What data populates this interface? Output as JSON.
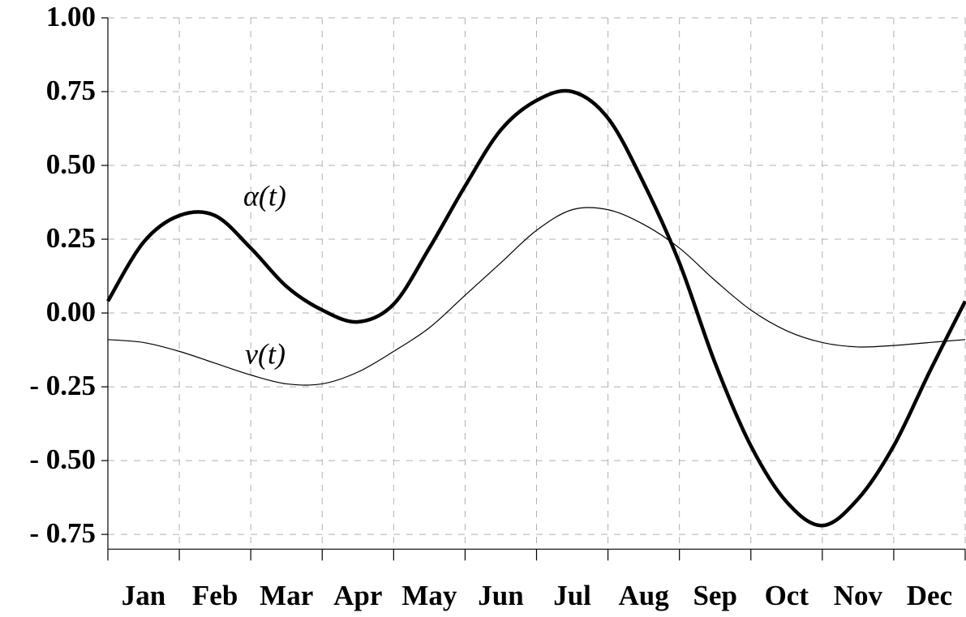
{
  "chart_data": {
    "type": "line",
    "categories": [
      "Jan",
      "Feb",
      "Mar",
      "Apr",
      "May",
      "Jun",
      "Jul",
      "Aug",
      "Sep",
      "Oct",
      "Nov",
      "Dec"
    ],
    "x": [
      0,
      0.5,
      1,
      1.5,
      2,
      2.5,
      3,
      3.5,
      4,
      4.5,
      5,
      5.5,
      6,
      6.5,
      7,
      7.5,
      8,
      8.5,
      9,
      9.5,
      10,
      10.5,
      11,
      11.5,
      12
    ],
    "xlim": [
      0,
      12
    ],
    "xticks": [
      0,
      1,
      2,
      3,
      4,
      5,
      6,
      7,
      8,
      9,
      10,
      11,
      12
    ],
    "series": [
      {
        "name": "α(t)",
        "color": "#000000",
        "values": [
          0.04,
          0.24,
          0.33,
          0.33,
          0.22,
          0.09,
          0.01,
          -0.03,
          0.03,
          0.22,
          0.43,
          0.62,
          0.72,
          0.75,
          0.66,
          0.44,
          0.17,
          -0.17,
          -0.45,
          -0.64,
          -0.72,
          -0.63,
          -0.45,
          -0.2,
          0.04
        ]
      },
      {
        "name": "ν(t)",
        "color": "#000000",
        "values": [
          -0.09,
          -0.1,
          -0.13,
          -0.17,
          -0.21,
          -0.24,
          -0.24,
          -0.2,
          -0.13,
          -0.05,
          0.06,
          0.17,
          0.28,
          0.35,
          0.35,
          0.3,
          0.22,
          0.11,
          0.01,
          -0.06,
          -0.1,
          -0.115,
          -0.11,
          -0.1,
          -0.09
        ]
      }
    ],
    "ylim": [
      -0.8,
      1.0
    ],
    "yticks": [
      {
        "value": 1.0,
        "label": "1.00"
      },
      {
        "value": 0.75,
        "label": "0.75"
      },
      {
        "value": 0.5,
        "label": "0.50"
      },
      {
        "value": 0.25,
        "label": "0.25"
      },
      {
        "value": 0,
        "label": "0.00"
      },
      {
        "value": -0.25,
        "label": "- 0.25"
      },
      {
        "value": -0.5,
        "label": "- 0.50"
      },
      {
        "value": -0.75,
        "label": "- 0.75"
      }
    ],
    "grid": true
  }
}
